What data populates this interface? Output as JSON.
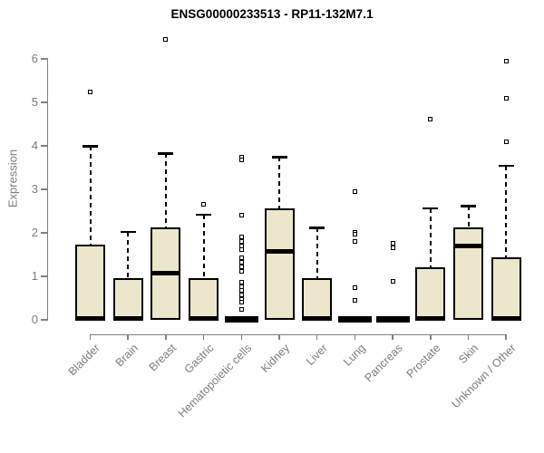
{
  "title": "ENSG00000233513 - RP11-132M7.1",
  "chart_data": {
    "type": "box",
    "title": "ENSG00000233513 - RP11-132M7.1",
    "xlabel": "",
    "ylabel": "Expression",
    "ylim": [
      0,
      6
    ],
    "yticks": [
      0,
      1,
      2,
      3,
      4,
      5,
      6
    ],
    "grid": false,
    "legend": "none",
    "box_fill": "#ece7cc",
    "box_border": "#000000",
    "axis_color": "#808080",
    "label_color": "#7d7d7d",
    "categories": [
      "Bladder",
      "Brain",
      "Breast",
      "Gastric",
      "Hematopoietic cells",
      "Kidney",
      "Liver",
      "Lung",
      "Pancreas",
      "Prostate",
      "Skin",
      "Unknown / Other"
    ],
    "series": [
      {
        "label": "Bladder",
        "q1": 0,
        "median": 0.03,
        "q3": 1.72,
        "whisker_low": 0,
        "whisker_high": 4.0,
        "outliers": [
          5.25
        ],
        "collapsed": false
      },
      {
        "label": "Brain",
        "q1": 0,
        "median": 0.03,
        "q3": 0.95,
        "whisker_low": 0,
        "whisker_high": 2.03,
        "outliers": [],
        "collapsed": false
      },
      {
        "label": "Breast",
        "q1": 0,
        "median": 1.07,
        "q3": 2.13,
        "whisker_low": 0,
        "whisker_high": 3.83,
        "outliers": [
          6.45
        ],
        "collapsed": false
      },
      {
        "label": "Gastric",
        "q1": 0,
        "median": 0.03,
        "q3": 0.95,
        "whisker_low": 0,
        "whisker_high": 2.42,
        "outliers": [
          2.65
        ],
        "collapsed": false
      },
      {
        "label": "Hematopoietic cells",
        "q1": 0,
        "median": 0,
        "q3": 0,
        "whisker_low": 0,
        "whisker_high": 0,
        "outliers": [
          3.75,
          3.67,
          2.4,
          1.9,
          1.8,
          1.7,
          1.62,
          1.42,
          1.32,
          1.22,
          1.12,
          0.87,
          0.77,
          0.67,
          0.57,
          0.47,
          0.4,
          0.23
        ],
        "collapsed": true
      },
      {
        "label": "Kidney",
        "q1": 0,
        "median": 1.57,
        "q3": 2.57,
        "whisker_low": 0,
        "whisker_high": 3.75,
        "outliers": [],
        "collapsed": false
      },
      {
        "label": "Liver",
        "q1": 0,
        "median": 0.03,
        "q3": 0.95,
        "whisker_low": 0,
        "whisker_high": 2.12,
        "outliers": [],
        "collapsed": false
      },
      {
        "label": "Lung",
        "q1": 0,
        "median": 0,
        "q3": 0,
        "whisker_low": 0,
        "whisker_high": 0,
        "outliers": [
          2.95,
          2.02,
          1.97,
          1.8,
          0.75,
          0.45
        ],
        "collapsed": true
      },
      {
        "label": "Pancreas",
        "q1": 0,
        "median": 0,
        "q3": 0,
        "whisker_low": 0,
        "whisker_high": 0,
        "outliers": [
          1.77,
          1.65,
          0.88
        ],
        "collapsed": true
      },
      {
        "label": "Prostate",
        "q1": 0,
        "median": 0.03,
        "q3": 1.2,
        "whisker_low": 0,
        "whisker_high": 2.57,
        "outliers": [
          4.62
        ],
        "collapsed": false
      },
      {
        "label": "Skin",
        "q1": 0,
        "median": 1.7,
        "q3": 2.13,
        "whisker_low": 0,
        "whisker_high": 2.62,
        "outliers": [],
        "collapsed": false
      },
      {
        "label": "Unknown / Other",
        "q1": 0,
        "median": 0.03,
        "q3": 1.43,
        "whisker_low": 0,
        "whisker_high": 3.55,
        "outliers": [
          5.95,
          5.1,
          4.1
        ],
        "collapsed": false
      }
    ]
  }
}
